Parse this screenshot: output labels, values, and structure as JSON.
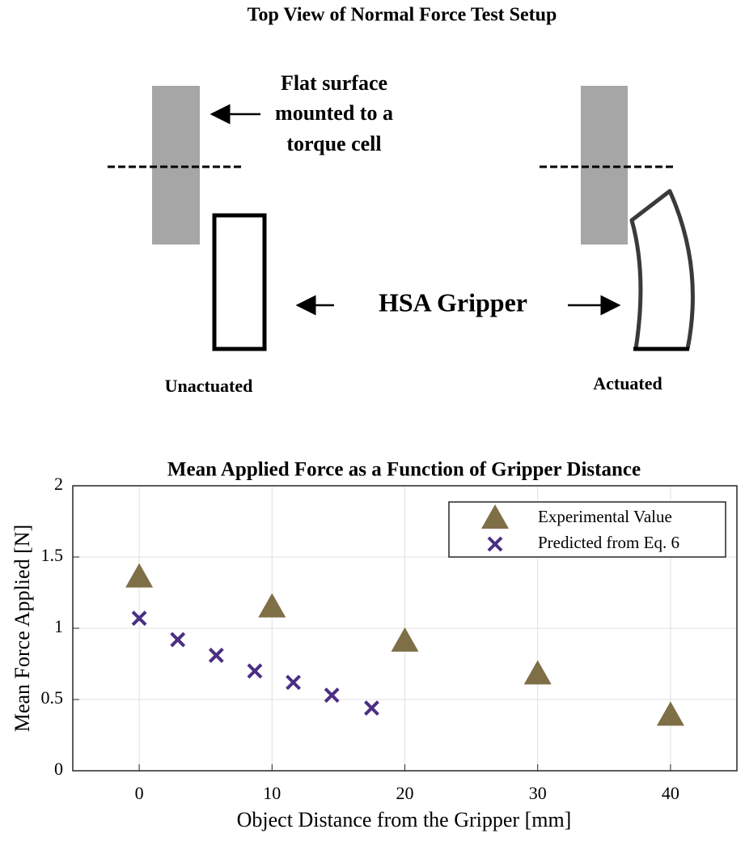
{
  "diagram": {
    "title": "Top View of Normal Force Test Setup",
    "surface_label": [
      "Flat surface",
      "mounted to a",
      "torque cell"
    ],
    "gripper_label": "HSA Gripper",
    "left_state": "Unactuated",
    "right_state": "Actuated"
  },
  "chart_data": {
    "type": "scatter",
    "title": "Mean Applied Force as a Function of Gripper Distance",
    "x_label": "Object Distance from the Gripper [mm]",
    "y_label": "Mean Force Applied [N]",
    "xlim": [
      -5,
      45
    ],
    "xticks": [
      0,
      10,
      20,
      30,
      40
    ],
    "ylim": [
      0,
      2
    ],
    "yticks": [
      0,
      0.5,
      1,
      1.5,
      2
    ],
    "grid": true,
    "legend": "northeast",
    "series": [
      {
        "name": "Experimental Value",
        "color": "#7f6f47",
        "marker": "triangle",
        "x": [
          0,
          10,
          20,
          30,
          40
        ],
        "values": [
          1.36,
          1.15,
          0.91,
          0.68,
          0.39
        ]
      },
      {
        "name": "Predicted from Eq. 6",
        "color": "#4b2e83",
        "marker": "x",
        "x": [
          0,
          2.9,
          5.8,
          8.7,
          11.6,
          14.5,
          17.5
        ],
        "values": [
          1.07,
          0.92,
          0.81,
          0.7,
          0.62,
          0.53,
          0.44
        ]
      }
    ]
  }
}
